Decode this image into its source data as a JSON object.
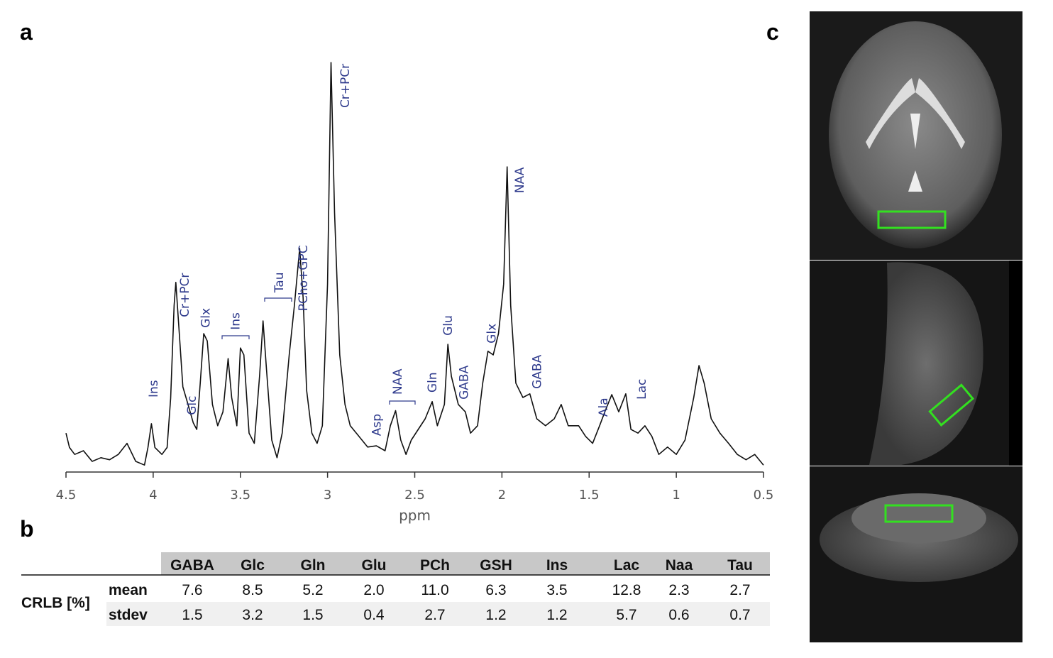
{
  "panel_labels": [
    "a",
    "b",
    "c"
  ],
  "chart_data": {
    "type": "line",
    "color": "#111111",
    "x_label": "ppm",
    "xlim": [
      4.5,
      0.5
    ],
    "xticks": [
      4.5,
      4,
      3.5,
      3,
      2.5,
      2,
      1.5,
      1,
      0.5
    ],
    "ylim": [
      0,
      100
    ],
    "x": [
      4.5,
      4.48,
      4.45,
      4.4,
      4.35,
      4.3,
      4.25,
      4.2,
      4.15,
      4.1,
      4.05,
      4.03,
      4.01,
      3.99,
      3.95,
      3.92,
      3.9,
      3.88,
      3.87,
      3.85,
      3.83,
      3.8,
      3.77,
      3.75,
      3.73,
      3.71,
      3.69,
      3.66,
      3.63,
      3.6,
      3.57,
      3.55,
      3.52,
      3.5,
      3.48,
      3.45,
      3.42,
      3.39,
      3.37,
      3.35,
      3.32,
      3.29,
      3.26,
      3.22,
      3.19,
      3.16,
      3.14,
      3.12,
      3.09,
      3.06,
      3.03,
      3.0,
      2.98,
      2.96,
      2.93,
      2.9,
      2.87,
      2.82,
      2.77,
      2.72,
      2.67,
      2.64,
      2.61,
      2.58,
      2.55,
      2.52,
      2.48,
      2.44,
      2.4,
      2.37,
      2.33,
      2.31,
      2.29,
      2.25,
      2.21,
      2.18,
      2.14,
      2.11,
      2.08,
      2.05,
      2.02,
      1.99,
      1.97,
      1.95,
      1.92,
      1.88,
      1.84,
      1.8,
      1.75,
      1.7,
      1.66,
      1.62,
      1.56,
      1.52,
      1.48,
      1.44,
      1.41,
      1.37,
      1.33,
      1.29,
      1.26,
      1.22,
      1.18,
      1.14,
      1.1,
      1.05,
      1.0,
      0.95,
      0.9,
      0.87,
      0.84,
      0.8,
      0.75,
      0.7,
      0.65,
      0.6,
      0.55,
      0.5
    ],
    "values": [
      9.5,
      6,
      4.3,
      5.2,
      2.6,
      3.5,
      3,
      4.3,
      7,
      2.6,
      1.7,
      6,
      11.8,
      6,
      4.3,
      6,
      18,
      40.7,
      46.3,
      33.8,
      20.8,
      16.5,
      12,
      10.4,
      21.7,
      33.8,
      32,
      16.5,
      11.3,
      14.7,
      27.7,
      18.2,
      11.3,
      30.3,
      28.6,
      9.5,
      7,
      23.4,
      36.9,
      25,
      7.8,
      3.5,
      9.5,
      28.6,
      40.7,
      54.6,
      42.5,
      20,
      9.5,
      7,
      11.3,
      45.9,
      100,
      63.3,
      28.6,
      16.5,
      11.3,
      8.7,
      6.1,
      6.4,
      5.2,
      11.3,
      15,
      7.8,
      4.3,
      7.8,
      10.4,
      13,
      17.2,
      11.3,
      16.5,
      31.2,
      23.4,
      16.5,
      14.7,
      9.5,
      11.3,
      21.7,
      29.5,
      28.6,
      33.8,
      45.9,
      74.5,
      40.7,
      21.7,
      18.2,
      19.1,
      13,
      11.3,
      13,
      16.5,
      11.3,
      11.3,
      8.7,
      7,
      11.3,
      14.7,
      18.9,
      14.7,
      19.1,
      10.4,
      9.5,
      11.3,
      8.7,
      4.3,
      6.1,
      4.3,
      7.8,
      18.2,
      26,
      21.7,
      13,
      9.5,
      7,
      4.3,
      3,
      4.3,
      1.7
    ],
    "annotations": [
      {
        "text": "Ins",
        "x": 4.0,
        "y": 18.2
      },
      {
        "text": "Cr+PCr",
        "x": 3.82,
        "y": 37.8
      },
      {
        "text": "Glc",
        "x": 3.78,
        "y": 13.9
      },
      {
        "text": "Glx",
        "x": 3.7,
        "y": 35.2
      },
      {
        "text": "Ins",
        "x": 3.53,
        "y": 34.7
      },
      {
        "text": "Tau",
        "x": 3.28,
        "y": 43.8
      },
      {
        "text": "PCho+GPC",
        "x": 3.14,
        "y": 39.3
      },
      {
        "text": "Cr+PCr",
        "x": 2.9,
        "y": 88.9
      },
      {
        "text": "Asp",
        "x": 2.72,
        "y": 8.8
      },
      {
        "text": "NAA",
        "x": 2.6,
        "y": 18.9
      },
      {
        "text": "Gln",
        "x": 2.4,
        "y": 19.4
      },
      {
        "text": "Glu",
        "x": 2.31,
        "y": 33.3
      },
      {
        "text": "GABA",
        "x": 2.22,
        "y": 17.7
      },
      {
        "text": "Glx",
        "x": 2.06,
        "y": 31.4
      },
      {
        "text": "NAA",
        "x": 1.9,
        "y": 68.1
      },
      {
        "text": "GABA",
        "x": 1.8,
        "y": 20.3
      },
      {
        "text": "Ala",
        "x": 1.42,
        "y": 13.5
      },
      {
        "text": "Lac",
        "x": 1.2,
        "y": 17.7
      }
    ]
  },
  "table": {
    "header": [
      "GABA",
      "Glc",
      "Gln",
      "Glu",
      "PCh",
      "GSH",
      "Ins",
      "Lac",
      "Naa",
      "Tau"
    ],
    "group": "CRLB [%]",
    "rows": [
      [
        "mean",
        "7.6",
        "8.5",
        "5.2",
        "2.0",
        "11.0",
        "6.3",
        "3.5",
        "12.8",
        "2.3",
        "2.7"
      ],
      [
        "stdev",
        "1.5",
        "3.2",
        "1.5",
        "0.4",
        "2.7",
        "1.2",
        "1.2",
        "5.7",
        "0.6",
        "0.7"
      ]
    ]
  }
}
